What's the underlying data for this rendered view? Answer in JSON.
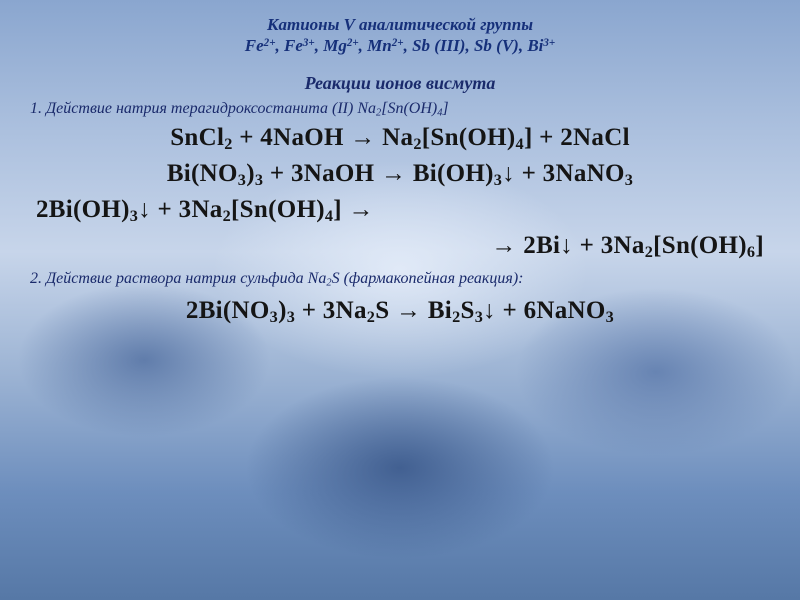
{
  "title_line1": "Катионы V аналитической группы",
  "title_line2_html": "Fe<sup>2+</sup>, Fe<sup>3+</sup>, Mg<sup>2+</sup>, Mn<sup>2+</sup>, Sb (III), Sb (V), Bi<sup>3+</sup>",
  "subtitle": "Реакции ионов висмута",
  "step1_html": "1. Действие натрия терагидроксостанита (II) Na<sub>2</sub>[Sn(OH)<sub>4</sub>]",
  "eq1_html": "SnCl<sub>2</sub> + 4NaOH <span class='arr'>→</span> Na<sub>2</sub>[Sn(OH)<sub>4</sub>] + 2NaCl",
  "eq2_html": "Bi(NO<sub>3</sub>)<sub>3</sub> + 3NaOH <span class='arr'>→</span> Bi(OH)<sub>3</sub>↓ + 3NaNO<sub>3</sub>",
  "eq3a_html": "2Bi(OH)<sub>3</sub>↓ + 3Na<sub>2</sub>[Sn(OH)<sub>4</sub>] <span class='arr'>→</span>",
  "eq3b_html": "<span class='arr'>→</span> 2Bi↓ + 3Na<sub>2</sub>[Sn(OH)<sub>6</sub>]",
  "step2_html": "2. Действие раствора натрия сульфида Na<sub>2</sub>S (фармакопейная реакция):",
  "eq4_html": "2Bi(NO<sub>3</sub>)<sub>3</sub> + 3Na<sub>2</sub>S <span class='arr'>→</span> Bi<sub>2</sub>S<sub>3</sub>↓ + 6NaNO<sub>3</sub>",
  "colors": {
    "heading": "#16307a",
    "body": "#151515"
  },
  "fonts": {
    "family": "Times New Roman",
    "title_size_pt": 13,
    "subtitle_size_pt": 14,
    "step_size_pt": 12,
    "equation_size_pt": 19
  }
}
